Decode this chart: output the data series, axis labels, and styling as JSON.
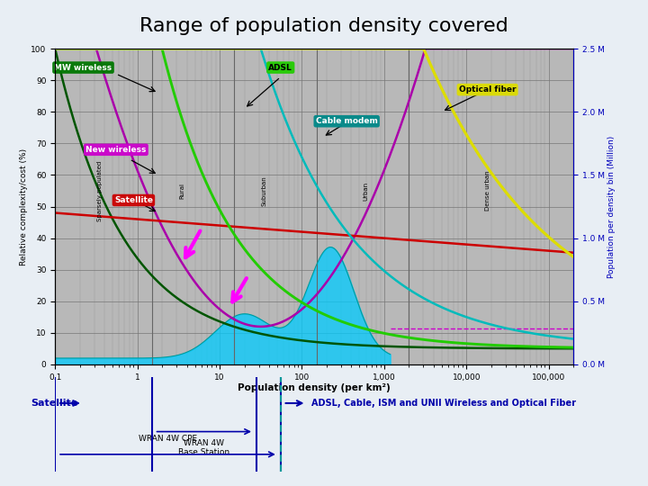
{
  "title": "Range of population density covered",
  "title_fontsize": 16,
  "background_color": "#e8eef4",
  "plot_bg": "#b8b8b8",
  "xlabel": "Population density (per km²)",
  "ylabel": "Relative complexity/cost (%)",
  "ylabel_right": "Population per density bin (Million)",
  "xlim": [
    0.1,
    200000
  ],
  "ylim": [
    0,
    100
  ],
  "zones": [
    "Sparsely populated",
    "Rural",
    "Suburban",
    "Urban",
    "Dense urban"
  ],
  "zone_x": [
    0.35,
    3.5,
    35,
    600,
    18000
  ],
  "zone_y": 55,
  "zone_boundaries": [
    1.5,
    15,
    150,
    2000
  ],
  "colors": {
    "mw_wireless": "#005500",
    "new_wireless": "#aa00aa",
    "satellite_curve": "#cc0000",
    "adsl": "#22cc00",
    "cable_modem": "#00bbbb",
    "optical_fiber": "#dddd00",
    "population_fill": "#00ccff",
    "population_line": "#009999",
    "pop_dashed": "#cc00cc",
    "zone_line": "#666666"
  },
  "label_colors": {
    "mw_wireless_bg": "#007700",
    "adsl_bg": "#22cc00",
    "optical_fiber_bg": "#dddd00",
    "cable_modem_bg": "#008888",
    "new_wireless_bg": "#cc00cc",
    "satellite_bg": "#cc0000"
  },
  "bottom_labels": {
    "satellite": "Satellite",
    "wran_bs": "WRAN 4W\nBase Station",
    "wran_cpe": "WRAN 4W CPE",
    "adsl_etc": "ADSL, Cable, ISM and UNII Wireless and Optical Fiber"
  },
  "slide_bg": "#c8d8e8",
  "footer_bg": "#1a3a6a"
}
